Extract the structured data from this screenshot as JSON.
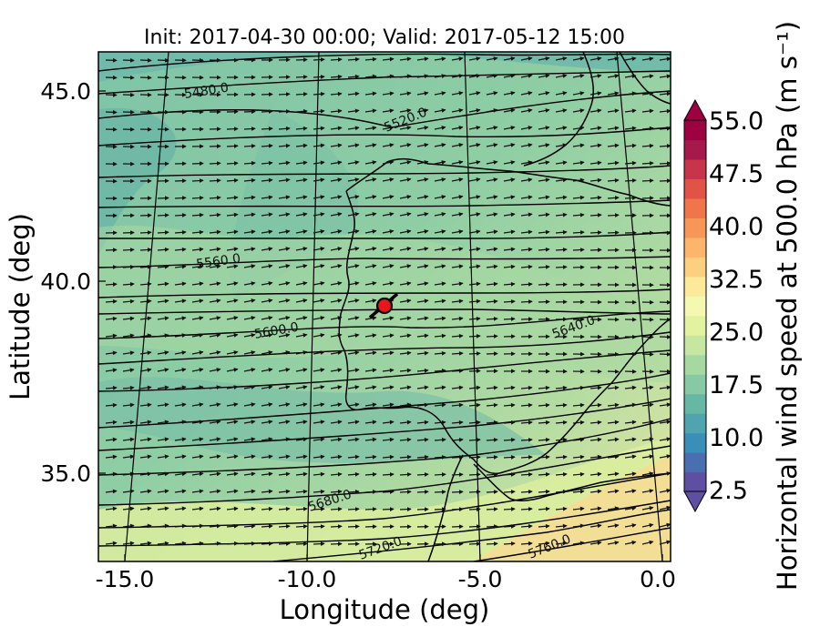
{
  "title": "Init: 2017-04-30 00:00; Valid: 2017-05-12 15:00",
  "x_axis": {
    "label": "Longitude (deg)",
    "ticks": [
      "-15.0",
      "-10.0",
      "-5.0",
      "0.0"
    ]
  },
  "y_axis": {
    "label": "Latitude (deg)",
    "ticks": [
      "45.0",
      "40.0",
      "35.0"
    ]
  },
  "colorbar": {
    "label": "Horizontal wind speed at 500.0 hPa (m s⁻¹)",
    "ticks": [
      "55.0",
      "47.5",
      "40.0",
      "32.5",
      "25.0",
      "17.5",
      "10.0",
      "2.5"
    ],
    "colors": [
      "#5e4fa2",
      "#4a6fb0",
      "#3a8fb8",
      "#4fa4b0",
      "#66b7a4",
      "#86c9a3",
      "#a6d9a2",
      "#c6e7a0",
      "#e2f2a0",
      "#f5f8b0",
      "#fee89a",
      "#fdd07f",
      "#fcb56a",
      "#f89657",
      "#f1754b",
      "#e05346",
      "#c8344a",
      "#a51a4a",
      "#9e0142"
    ]
  },
  "contour_labels": [
    "5480.0",
    "5520.0",
    "5560.0",
    "5600.0",
    "5640.0",
    "5680.0",
    "5720.0",
    "5760.0"
  ],
  "map_colors": {
    "base": "#8dcba4",
    "dark": "#66b7a9",
    "light": "#b9e0a2",
    "yellow": "#e7f3a2",
    "orange": "#f7e39a"
  },
  "marker": {
    "color": "#e8161b",
    "lon": -7.6,
    "lat": 39.3
  }
}
